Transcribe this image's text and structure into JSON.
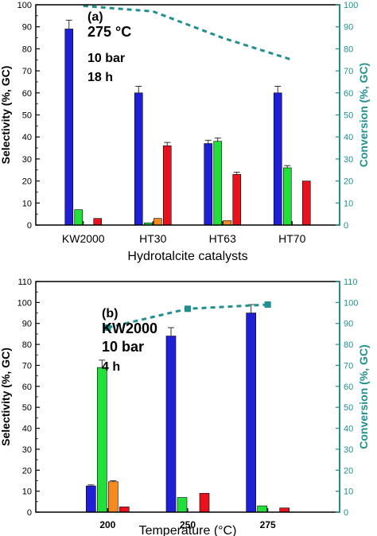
{
  "colors": {
    "series_blue": "#1f1fd6",
    "series_green": "#22e03a",
    "series_orange": "#f58a1f",
    "series_red": "#e8121c",
    "conversion": "#1f8f8f",
    "axis": "#000000",
    "right_axis": "#1f8f8f"
  },
  "chart_data": [
    {
      "type": "bar",
      "panel_label": "(a)",
      "annotations": [
        "275 °C",
        "10 bar",
        "18 h"
      ],
      "xlabel": "Hydrotalcite catalysts",
      "ylabel": "Selectivity (%, GC)",
      "y2label": "Conversion (%, GC)",
      "ylim": [
        0,
        100
      ],
      "y2lim": [
        0,
        100
      ],
      "yticks": [
        0,
        10,
        20,
        30,
        40,
        50,
        60,
        70,
        80,
        90,
        100
      ],
      "categories": [
        "KW2000",
        "HT30",
        "HT63",
        "HT70"
      ],
      "grid": false,
      "series": [
        {
          "values": [
            89,
            60,
            37,
            60
          ],
          "errors": [
            4,
            3,
            1.5,
            3
          ]
        },
        {
          "values": [
            7,
            1,
            38,
            26
          ],
          "errors": [
            0,
            0,
            1.5,
            1
          ]
        },
        {
          "values": [
            0,
            3,
            2,
            0
          ],
          "errors": [
            0,
            0,
            0,
            0
          ]
        },
        {
          "values": [
            3,
            36,
            23,
            20
          ],
          "errors": [
            0,
            1.5,
            1,
            0
          ]
        }
      ],
      "conversion": {
        "values": [
          99.5,
          97,
          85,
          75
        ],
        "style": "dashed"
      }
    },
    {
      "type": "bar",
      "panel_label": "(b)",
      "annotations": [
        "KW2000",
        "10 bar",
        "4 h"
      ],
      "xlabel": "Temperature (°C)",
      "ylabel": "Selectivity (%, GC)",
      "y2label": "Conversion (%, GC)",
      "ylim": [
        0,
        110
      ],
      "y2lim": [
        0,
        110
      ],
      "yticks": [
        0,
        10,
        20,
        30,
        40,
        50,
        60,
        70,
        80,
        90,
        100,
        110
      ],
      "categories": [
        "200",
        "250",
        "275"
      ],
      "grid": false,
      "series": [
        {
          "values": [
            12.5,
            84,
            95
          ],
          "errors": [
            0.5,
            4,
            4
          ]
        },
        {
          "values": [
            69,
            7,
            3
          ],
          "errors": [
            3.5,
            0,
            0
          ]
        },
        {
          "values": [
            14.5,
            0,
            0
          ],
          "errors": [
            0.5,
            0,
            0
          ]
        },
        {
          "values": [
            2.5,
            9,
            2
          ],
          "errors": [
            0,
            0,
            0
          ]
        }
      ],
      "conversion": {
        "values": [
          88,
          97,
          99
        ],
        "style": "dashed-with-markers"
      }
    }
  ]
}
